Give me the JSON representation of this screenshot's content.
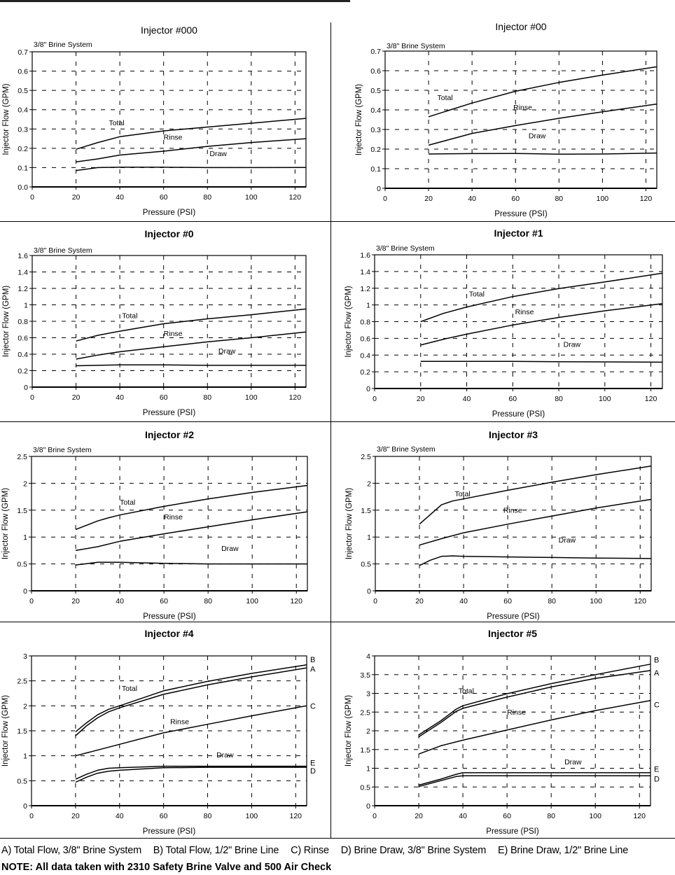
{
  "legend": [
    {
      "key": "A",
      "label": "A) Total Flow, 3/8\" Brine System"
    },
    {
      "key": "B",
      "label": "B) Total Flow, 1/2\" Brine Line"
    },
    {
      "key": "C",
      "label": "C) Rinse"
    },
    {
      "key": "D",
      "label": "D) Brine Draw, 3/8\" Brine System"
    },
    {
      "key": "E",
      "label": "E) Brine Draw, 1/2\" Brine Line"
    }
  ],
  "note": "NOTE:  All data taken with 2310 Safety Brine Valve and 500 Air Check",
  "chart_data": [
    {
      "type": "line",
      "title": "Injector #000",
      "title_bold": false,
      "subtitle": "3/8\" Brine System",
      "xlabel": "Pressure (PSI)",
      "ylabel": "Injector Flow (GPM)",
      "xlim": [
        0,
        125
      ],
      "ylim": [
        0,
        0.7
      ],
      "xticks": [
        0,
        20,
        40,
        60,
        80,
        100,
        120
      ],
      "yticks": [
        0,
        0.1,
        0.2,
        0.3,
        0.4,
        0.5,
        0.6,
        0.7
      ],
      "ytick_labels": [
        "0.0",
        "0.1",
        "0.2",
        "0.3",
        "0.4",
        "0.5",
        "0.6",
        "0.7"
      ],
      "grid": true,
      "series": [
        {
          "name": "Total",
          "x": [
            20,
            30,
            40,
            60,
            80,
            100,
            125
          ],
          "y": [
            0.195,
            0.23,
            0.26,
            0.29,
            0.31,
            0.33,
            0.355
          ]
        },
        {
          "name": "Rinse",
          "x": [
            20,
            30,
            40,
            60,
            80,
            100,
            125
          ],
          "y": [
            0.13,
            0.145,
            0.165,
            0.185,
            0.21,
            0.23,
            0.25
          ]
        },
        {
          "name": "Draw",
          "x": [
            20,
            30,
            40,
            60,
            80,
            100,
            125
          ],
          "y": [
            0.085,
            0.1,
            0.102,
            0.102,
            0.1,
            0.1,
            0.101
          ]
        }
      ],
      "annotations": [
        {
          "text": "Total",
          "x": 35,
          "y": 0.32
        },
        {
          "text": "Rinse",
          "x": 60,
          "y": 0.245
        },
        {
          "text": "Draw",
          "x": 81,
          "y": 0.16
        }
      ],
      "end_labels": []
    },
    {
      "type": "line",
      "title": "Injector #00",
      "title_bold": false,
      "subtitle": "3/8\" Brine System",
      "xlabel": "Pressure (PSI)",
      "ylabel": "Injector Flow (GPM)",
      "xlim": [
        0,
        125
      ],
      "ylim": [
        0,
        0.7
      ],
      "xticks": [
        0,
        20,
        40,
        60,
        80,
        100,
        120
      ],
      "yticks": [
        0,
        0.1,
        0.2,
        0.3,
        0.4,
        0.5,
        0.6,
        0.7
      ],
      "ytick_labels": [
        "0",
        "0.1",
        "0.2",
        "0.3",
        "0.4",
        "0.5",
        "0.6",
        "0.7"
      ],
      "grid": true,
      "series": [
        {
          "name": "Total",
          "x": [
            20,
            30,
            40,
            60,
            80,
            100,
            125
          ],
          "y": [
            0.365,
            0.4,
            0.435,
            0.495,
            0.54,
            0.578,
            0.62
          ]
        },
        {
          "name": "Rinse",
          "x": [
            20,
            30,
            40,
            60,
            80,
            100,
            125
          ],
          "y": [
            0.22,
            0.25,
            0.28,
            0.32,
            0.357,
            0.39,
            0.43
          ]
        },
        {
          "name": "Draw",
          "x": [
            20,
            40,
            60,
            80,
            100,
            125
          ],
          "y": [
            0.175,
            0.177,
            0.178,
            0.174,
            0.175,
            0.18
          ]
        }
      ],
      "annotations": [
        {
          "text": "Total",
          "x": 24,
          "y": 0.45
        },
        {
          "text": "Rinse",
          "x": 59,
          "y": 0.4
        },
        {
          "text": "Draw",
          "x": 66,
          "y": 0.255
        }
      ],
      "end_labels": []
    },
    {
      "type": "line",
      "title": "Injector #0",
      "title_bold": true,
      "subtitle": "3/8\" Brine System",
      "xlabel": "Pressure (PSI)",
      "ylabel": "Injector Flow (GPM)",
      "xlim": [
        0,
        125
      ],
      "ylim": [
        0,
        1.6
      ],
      "xticks": [
        0,
        20,
        40,
        60,
        80,
        100,
        120
      ],
      "yticks": [
        0,
        0.2,
        0.4,
        0.6,
        0.8,
        1,
        1.2,
        1.4,
        1.6
      ],
      "ytick_labels": [
        "0",
        "0.2",
        "0.4",
        "0.6",
        "0.8",
        "1",
        "1.2",
        "1.4",
        "1.6"
      ],
      "grid": true,
      "series": [
        {
          "name": "Total",
          "x": [
            20,
            30,
            40,
            60,
            80,
            100,
            125
          ],
          "y": [
            0.56,
            0.63,
            0.68,
            0.77,
            0.83,
            0.88,
            0.95
          ]
        },
        {
          "name": "Rinse",
          "x": [
            20,
            30,
            40,
            60,
            80,
            100,
            125
          ],
          "y": [
            0.34,
            0.39,
            0.43,
            0.49,
            0.55,
            0.6,
            0.67
          ]
        },
        {
          "name": "Draw",
          "x": [
            20,
            40,
            60,
            80,
            100,
            125
          ],
          "y": [
            0.26,
            0.27,
            0.27,
            0.265,
            0.265,
            0.265
          ]
        }
      ],
      "annotations": [
        {
          "text": "Total",
          "x": 41,
          "y": 0.84
        },
        {
          "text": "Rinse",
          "x": 60,
          "y": 0.62
        },
        {
          "text": "Draw",
          "x": 85,
          "y": 0.41
        }
      ],
      "end_labels": []
    },
    {
      "type": "line",
      "title": "Injector #1",
      "title_bold": true,
      "subtitle": "3/8\" Brine System",
      "xlabel": "Pressure (PSI)",
      "ylabel": "Injector Flow (GPM)",
      "xlim": [
        0,
        125
      ],
      "ylim": [
        0,
        1.6
      ],
      "xticks": [
        0,
        20,
        40,
        60,
        80,
        100,
        120
      ],
      "yticks": [
        0,
        0.2,
        0.4,
        0.6,
        0.8,
        1,
        1.2,
        1.4,
        1.6
      ],
      "ytick_labels": [
        "0",
        "0.2",
        "0.4",
        "0.6",
        "0.8",
        "1",
        "1.2",
        "1.4",
        "1.6"
      ],
      "grid": true,
      "series": [
        {
          "name": "Total",
          "x": [
            20,
            30,
            40,
            60,
            80,
            100,
            125
          ],
          "y": [
            0.8,
            0.9,
            0.975,
            1.1,
            1.195,
            1.275,
            1.38
          ]
        },
        {
          "name": "Rinse",
          "x": [
            20,
            30,
            40,
            60,
            80,
            100,
            125
          ],
          "y": [
            0.52,
            0.59,
            0.65,
            0.76,
            0.85,
            0.93,
            1.015
          ]
        },
        {
          "name": "Draw",
          "x": [
            20,
            40,
            60,
            80,
            100,
            125
          ],
          "y": [
            0.325,
            0.325,
            0.325,
            0.32,
            0.318,
            0.315
          ]
        }
      ],
      "annotations": [
        {
          "text": "Total",
          "x": 41,
          "y": 1.1
        },
        {
          "text": "Rinse",
          "x": 61,
          "y": 0.89
        },
        {
          "text": "Draw",
          "x": 82,
          "y": 0.5
        }
      ],
      "end_labels": []
    },
    {
      "type": "line",
      "title": "Injector #2",
      "title_bold": true,
      "subtitle": "3/8\" Brine System",
      "xlabel": "Pressure (PSI)",
      "ylabel": "Injector Flow (GPM)",
      "xlim": [
        0,
        125
      ],
      "ylim": [
        0,
        2.5
      ],
      "xticks": [
        0,
        20,
        40,
        60,
        80,
        100,
        120
      ],
      "yticks": [
        0,
        0.5,
        1,
        1.5,
        2,
        2.5
      ],
      "ytick_labels": [
        "0",
        "0.5",
        "1",
        "1.5",
        "2",
        "2.5"
      ],
      "grid": true,
      "series": [
        {
          "name": "Total",
          "x": [
            20,
            30,
            35,
            40,
            60,
            80,
            100,
            125
          ],
          "y": [
            1.14,
            1.3,
            1.36,
            1.41,
            1.57,
            1.71,
            1.83,
            1.96
          ]
        },
        {
          "name": "Rinse",
          "x": [
            20,
            30,
            40,
            60,
            80,
            100,
            125
          ],
          "y": [
            0.75,
            0.82,
            0.92,
            1.06,
            1.19,
            1.32,
            1.47
          ]
        },
        {
          "name": "Draw",
          "x": [
            20,
            30,
            40,
            60,
            80,
            100,
            125
          ],
          "y": [
            0.48,
            0.53,
            0.53,
            0.51,
            0.5,
            0.5,
            0.5
          ]
        }
      ],
      "annotations": [
        {
          "text": "Total",
          "x": 40,
          "y": 1.6
        },
        {
          "text": "Rinse",
          "x": 60,
          "y": 1.33
        },
        {
          "text": "Draw",
          "x": 86,
          "y": 0.74
        }
      ],
      "end_labels": []
    },
    {
      "type": "line",
      "title": "Injector #3",
      "title_bold": true,
      "subtitle": "3/8\" Brine System",
      "xlabel": "Pressure (PSI)",
      "ylabel": "Injector Flow (GPM)",
      "xlim": [
        0,
        125
      ],
      "ylim": [
        0,
        2.5
      ],
      "xticks": [
        0,
        20,
        40,
        60,
        80,
        100,
        120
      ],
      "yticks": [
        0,
        0.5,
        1,
        1.5,
        2,
        2.5
      ],
      "ytick_labels": [
        "0",
        "0.5",
        "1",
        "1.5",
        "2",
        "2.5"
      ],
      "grid": true,
      "series": [
        {
          "name": "Total",
          "x": [
            20,
            25,
            30,
            35,
            40,
            60,
            80,
            100,
            125
          ],
          "y": [
            1.24,
            1.42,
            1.6,
            1.67,
            1.71,
            1.87,
            2.02,
            2.16,
            2.32
          ]
        },
        {
          "name": "Rinse",
          "x": [
            20,
            30,
            40,
            60,
            80,
            100,
            125
          ],
          "y": [
            0.85,
            0.97,
            1.08,
            1.24,
            1.39,
            1.54,
            1.7
          ]
        },
        {
          "name": "Draw",
          "x": [
            20,
            25,
            30,
            35,
            40,
            60,
            80,
            100,
            125
          ],
          "y": [
            0.47,
            0.57,
            0.64,
            0.65,
            0.64,
            0.63,
            0.62,
            0.61,
            0.6
          ]
        }
      ],
      "annotations": [
        {
          "text": "Total",
          "x": 36,
          "y": 1.76
        },
        {
          "text": "Rinse",
          "x": 58,
          "y": 1.45
        },
        {
          "text": "Draw",
          "x": 83,
          "y": 0.9
        }
      ],
      "end_labels": []
    },
    {
      "type": "line",
      "title": "Injector #4",
      "title_bold": true,
      "subtitle": "",
      "xlabel": "Pressure (PSI)",
      "ylabel": "Injector Flow (GPM)",
      "xlim": [
        0,
        125
      ],
      "ylim": [
        0,
        3
      ],
      "xticks": [
        0,
        20,
        40,
        60,
        80,
        100,
        120
      ],
      "yticks": [
        0,
        0.5,
        1,
        1.5,
        2,
        2.5,
        3
      ],
      "ytick_labels": [
        "0",
        "0.5",
        "1",
        "1.5",
        "2",
        "2.5",
        "3"
      ],
      "grid": true,
      "series": [
        {
          "name": "B",
          "x": [
            20,
            25,
            30,
            35,
            40,
            60,
            80,
            100,
            125
          ],
          "y": [
            1.48,
            1.66,
            1.82,
            1.93,
            2.0,
            2.3,
            2.49,
            2.65,
            2.82
          ]
        },
        {
          "name": "A",
          "x": [
            20,
            25,
            30,
            35,
            40,
            60,
            80,
            100,
            125
          ],
          "y": [
            1.4,
            1.6,
            1.76,
            1.88,
            1.96,
            2.23,
            2.42,
            2.58,
            2.76
          ]
        },
        {
          "name": "C",
          "x": [
            20,
            40,
            60,
            80,
            100,
            125
          ],
          "y": [
            1.0,
            1.23,
            1.46,
            1.63,
            1.8,
            2.0
          ]
        },
        {
          "name": "E",
          "x": [
            20,
            25,
            30,
            35,
            40,
            60,
            80,
            100,
            125
          ],
          "y": [
            0.53,
            0.63,
            0.71,
            0.75,
            0.76,
            0.79,
            0.79,
            0.79,
            0.79
          ]
        },
        {
          "name": "D",
          "x": [
            20,
            25,
            30,
            35,
            40,
            60,
            80,
            100,
            125
          ],
          "y": [
            0.47,
            0.57,
            0.65,
            0.69,
            0.71,
            0.76,
            0.77,
            0.77,
            0.77
          ]
        }
      ],
      "annotations": [
        {
          "text": "Total",
          "x": 41,
          "y": 2.3
        },
        {
          "text": "Rinse",
          "x": 63,
          "y": 1.63
        },
        {
          "text": "Draw",
          "x": 84,
          "y": 0.97
        }
      ],
      "end_labels": [
        {
          "text": "B",
          "y": 2.93
        },
        {
          "text": "A",
          "y": 2.74
        },
        {
          "text": "C",
          "y": 2.0
        },
        {
          "text": "E",
          "y": 0.86
        },
        {
          "text": "D",
          "y": 0.7
        }
      ]
    },
    {
      "type": "line",
      "title": "Injector #5",
      "title_bold": true,
      "subtitle": "",
      "xlabel": "Pressure (PSI)",
      "ylabel": "Injector Flow (GPM)",
      "xlim": [
        0,
        125
      ],
      "ylim": [
        0,
        4
      ],
      "xticks": [
        0,
        20,
        40,
        60,
        80,
        100,
        120
      ],
      "yticks": [
        0,
        0.5,
        1,
        1.5,
        2,
        2.5,
        3,
        3.5,
        4
      ],
      "ytick_labels": [
        "0",
        "0.5",
        "1",
        "1.5",
        "2",
        "2.5",
        "3",
        "3.5",
        "4"
      ],
      "grid": true,
      "series": [
        {
          "name": "B",
          "x": [
            20,
            30,
            37,
            40,
            60,
            80,
            100,
            125
          ],
          "y": [
            1.89,
            2.27,
            2.58,
            2.67,
            2.99,
            3.26,
            3.5,
            3.78
          ]
        },
        {
          "name": "A",
          "x": [
            20,
            30,
            37,
            40,
            60,
            80,
            100,
            125
          ],
          "y": [
            1.84,
            2.22,
            2.52,
            2.6,
            2.9,
            3.17,
            3.4,
            3.61
          ]
        },
        {
          "name": "C",
          "x": [
            20,
            30,
            40,
            60,
            80,
            100,
            125
          ],
          "y": [
            1.38,
            1.6,
            1.75,
            2.02,
            2.29,
            2.54,
            2.81
          ]
        },
        {
          "name": "E",
          "x": [
            20,
            30,
            37,
            40,
            60,
            80,
            100,
            125
          ],
          "y": [
            0.55,
            0.71,
            0.84,
            0.88,
            0.88,
            0.88,
            0.88,
            0.88
          ]
        },
        {
          "name": "D",
          "x": [
            20,
            30,
            37,
            40,
            60,
            80,
            100,
            125
          ],
          "y": [
            0.51,
            0.67,
            0.78,
            0.8,
            0.8,
            0.8,
            0.8,
            0.8
          ]
        }
      ],
      "annotations": [
        {
          "text": "Total",
          "x": 38,
          "y": 3.0
        },
        {
          "text": "Rinse",
          "x": 60,
          "y": 2.43
        },
        {
          "text": "Draw",
          "x": 86,
          "y": 1.1
        }
      ],
      "end_labels": [
        {
          "text": "B",
          "y": 3.9
        },
        {
          "text": "A",
          "y": 3.55
        },
        {
          "text": "C",
          "y": 2.7
        },
        {
          "text": "E",
          "y": 0.98
        },
        {
          "text": "D",
          "y": 0.72
        }
      ]
    }
  ]
}
